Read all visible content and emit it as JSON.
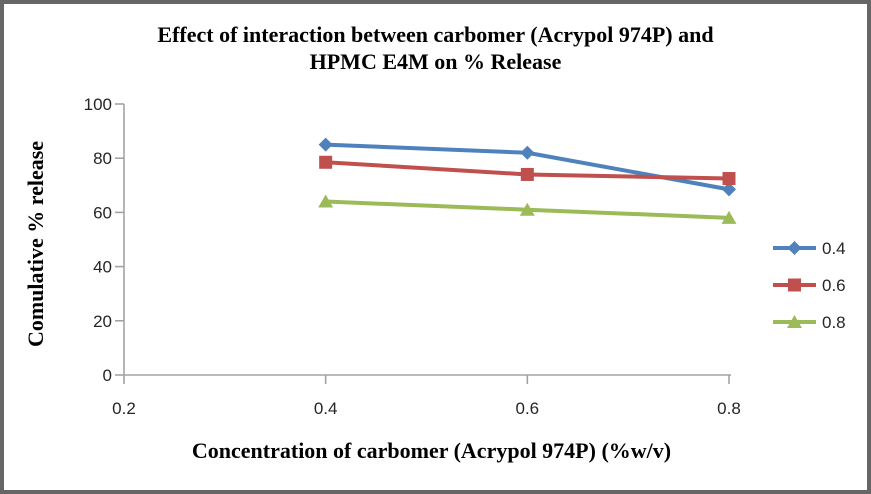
{
  "frame": {
    "border_color": "#666666",
    "background": "#ffffff"
  },
  "chart_data": {
    "type": "line",
    "title_line1": "Effect of interaction between carbomer (Acrypol 974P) and",
    "title_line2": "HPMC E4M on % Release",
    "xlabel": "Concentration of carbomer (Acrypol 974P) (%w/v)",
    "ylabel": "Comulative % release",
    "x": [
      0.4,
      0.6,
      0.8
    ],
    "xlim": [
      0.2,
      0.8
    ],
    "ylim": [
      0,
      100
    ],
    "x_ticks": [
      "0.2",
      "0.4",
      "0.6",
      "0.8"
    ],
    "x_tick_values": [
      0.2,
      0.4,
      0.6,
      0.8
    ],
    "y_ticks": [
      "0",
      "20",
      "40",
      "60",
      "80",
      "100"
    ],
    "y_tick_values": [
      0,
      20,
      40,
      60,
      80,
      100
    ],
    "grid": false,
    "legend_position": "right",
    "axis_color": "#a3a3a3",
    "tick_label_color": "#262626",
    "series": [
      {
        "name": "0.4",
        "color": "#4F81BD",
        "marker": "diamond",
        "values": [
          85,
          82,
          68.5
        ]
      },
      {
        "name": "0.6",
        "color": "#C0504D",
        "marker": "square",
        "values": [
          78.5,
          74,
          72.5
        ]
      },
      {
        "name": "0.8",
        "color": "#9BBB59",
        "marker": "triangle",
        "values": [
          64,
          61,
          58
        ]
      }
    ]
  }
}
